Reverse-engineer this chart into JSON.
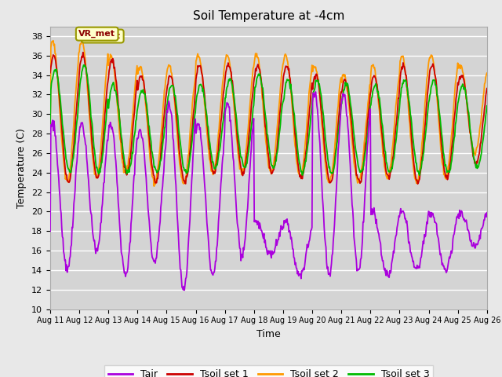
{
  "title": "Soil Temperature at -4cm",
  "xlabel": "Time",
  "ylabel": "Temperature (C)",
  "ylim": [
    10,
    39
  ],
  "xlim": [
    0,
    15
  ],
  "fig_facecolor": "#e8e8e8",
  "ax_facecolor": "#d4d4d4",
  "colors": {
    "Tair": "#aa00dd",
    "Tsoil1": "#cc0000",
    "Tsoil2": "#ff9900",
    "Tsoil3": "#00bb00"
  },
  "legend_labels": [
    "Tair",
    "Tsoil set 1",
    "Tsoil set 2",
    "Tsoil set 3"
  ],
  "xtick_labels": [
    "Aug 11",
    "Aug 12",
    "Aug 13",
    "Aug 14",
    "Aug 15",
    "Aug 16",
    "Aug 17",
    "Aug 18",
    "Aug 19",
    "Aug 20",
    "Aug 21",
    "Aug 22",
    "Aug 23",
    "Aug 24",
    "Aug 25",
    "Aug 26"
  ],
  "ytick_values": [
    10,
    12,
    14,
    16,
    18,
    20,
    22,
    24,
    26,
    28,
    30,
    32,
    34,
    36,
    38
  ],
  "annotation_text": "VR_met",
  "vr_met_x": 0.5,
  "vr_met_y": 38.2
}
